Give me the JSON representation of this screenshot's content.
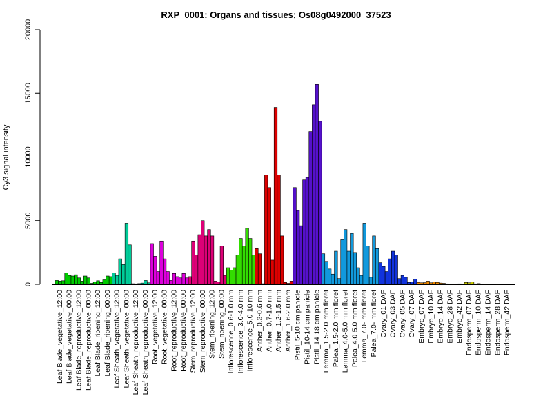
{
  "chart_data": {
    "type": "bar",
    "title": "RXP_0001: Organs and tissues; Os08g0492000_37523",
    "xlabel": "",
    "ylabel": "Cy3 signal intensity",
    "ylim": [
      0,
      20000
    ],
    "yticks": [
      0,
      5000,
      10000,
      15000,
      20000
    ],
    "legend": "none",
    "grid": false,
    "groups": [
      {
        "label": "Leaf Blade_vegetative_12:00",
        "color": "#00cc00",
        "values": [
          300,
          250,
          280
        ]
      },
      {
        "label": "Leaf Blade_vegetative_00:00",
        "color": "#00cc00",
        "values": [
          900,
          700,
          650
        ]
      },
      {
        "label": "Leaf Blade_reproductive_12:00",
        "color": "#00cc00",
        "values": [
          750,
          500,
          250
        ]
      },
      {
        "label": "Leaf Blade_reproductive_00:00",
        "color": "#00cc00",
        "values": [
          650,
          500,
          80
        ]
      },
      {
        "label": "Leaf Blade_ripening_12:00",
        "color": "#00cc00",
        "values": [
          200,
          280,
          150
        ]
      },
      {
        "label": "Leaf Blade_ripening_00:00",
        "color": "#00cc00",
        "values": [
          350,
          650,
          600
        ]
      },
      {
        "label": "Leaf Sheath_vegetative_12:00",
        "color": "#00cc99",
        "values": [
          900,
          700,
          2000
        ]
      },
      {
        "label": "Leaf Sheath_vegetative_00:00",
        "color": "#00cc99",
        "values": [
          1550,
          4800,
          3100
        ]
      },
      {
        "label": "Leaf Sheath_reproductive_12:00",
        "color": "#00cc99",
        "values": [
          50,
          40,
          60
        ]
      },
      {
        "label": "Leaf Sheath_reproductive_00:00",
        "color": "#00cc99",
        "values": [
          100,
          300,
          120
        ]
      },
      {
        "label": "Root_vegetative_12:00",
        "color": "#dd00dd",
        "values": [
          3200,
          2200,
          1000
        ]
      },
      {
        "label": "Root_vegetative_00:00",
        "color": "#dd00dd",
        "values": [
          3400,
          2000,
          1000
        ]
      },
      {
        "label": "Root_reproductive_12:00",
        "color": "#dd00dd",
        "values": [
          300,
          850,
          600
        ]
      },
      {
        "label": "Root_reproductive_00:00",
        "color": "#dd00dd",
        "values": [
          500,
          850,
          500
        ]
      },
      {
        "label": "Stem_reproductive_12:00",
        "color": "#dd0077",
        "values": [
          600,
          3400,
          2300
        ]
      },
      {
        "label": "Stem_reproductive_00:00",
        "color": "#dd0077",
        "values": [
          3900,
          5000,
          3800
        ]
      },
      {
        "label": "Stem_ripening_12:00",
        "color": "#dd0077",
        "values": [
          4300,
          3800,
          250
        ]
      },
      {
        "label": "Stem_ripening_00:00",
        "color": "#dd0077",
        "values": [
          200,
          3000,
          700
        ]
      },
      {
        "label": "Inflorescence_0.6-1.0 mm",
        "color": "#33dd00",
        "values": [
          1300,
          1100,
          1300
        ]
      },
      {
        "label": "Inflorescence_3.0-4.0 mm",
        "color": "#33dd00",
        "values": [
          2300,
          3600,
          3000
        ]
      },
      {
        "label": "Inflorescence_5.0-10 mm",
        "color": "#33dd00",
        "values": [
          4400,
          3600,
          2300
        ]
      },
      {
        "label": "Anther_0.3-0.6 mm",
        "color": "#dd0000",
        "values": [
          2800,
          2400,
          50
        ]
      },
      {
        "label": "Anther_0.7-1.0 mm",
        "color": "#dd0000",
        "values": [
          8600,
          7600,
          1900
        ]
      },
      {
        "label": "Anther_1.2-1.5 mm",
        "color": "#dd0000",
        "values": [
          13900,
          8600,
          3800
        ]
      },
      {
        "label": "Anther_1.6-2.0 mm",
        "color": "#dd0000",
        "values": [
          150,
          80,
          250
        ]
      },
      {
        "label": "Pistil_5-10 cm panicle",
        "color": "#5511cc",
        "values": [
          7600,
          5800,
          4600
        ]
      },
      {
        "label": "Pistil_10-14 cm panicle",
        "color": "#5511cc",
        "values": [
          8200,
          8400,
          12000
        ]
      },
      {
        "label": "Pistil_14-18 cm panicle",
        "color": "#5511cc",
        "values": [
          14100,
          15700,
          12800
        ]
      },
      {
        "label": "Lemma_1.5-2.0 mm floret",
        "color": "#1199dd",
        "values": [
          2400,
          1800,
          1200
        ]
      },
      {
        "label": "Palea_1.5-2.0 mm floret",
        "color": "#1199dd",
        "values": [
          800,
          2600,
          450
        ]
      },
      {
        "label": "Lemma_4.0-5.0 mm floret",
        "color": "#1199dd",
        "values": [
          3500,
          4300,
          2600
        ]
      },
      {
        "label": "Palea_4.0-5.0 mm floret",
        "color": "#1199dd",
        "values": [
          4000,
          2500,
          1300
        ]
      },
      {
        "label": "Lemma_7.0- mm floret",
        "color": "#1199dd",
        "values": [
          700,
          4800,
          3000
        ]
      },
      {
        "label": "Palea_7.0- mm floret",
        "color": "#1199dd",
        "values": [
          550,
          3800,
          2800
        ]
      },
      {
        "label": "Ovary_01 DAF",
        "color": "#1133dd",
        "values": [
          1700,
          1400,
          1000
        ]
      },
      {
        "label": "Ovary_03 DAF",
        "color": "#1133dd",
        "values": [
          2000,
          2600,
          2300
        ]
      },
      {
        "label": "Ovary_05 DAF",
        "color": "#1133dd",
        "values": [
          450,
          700,
          550
        ]
      },
      {
        "label": "Ovary_07 DAF",
        "color": "#1133dd",
        "values": [
          150,
          200,
          400
        ]
      },
      {
        "label": "Embryo_07 DAF",
        "color": "#ee8800",
        "values": [
          150,
          120,
          130
        ]
      },
      {
        "label": "Embryo_10 DAF",
        "color": "#ee8800",
        "values": [
          250,
          120,
          200
        ]
      },
      {
        "label": "Embryo_14 DAF",
        "color": "#ee8800",
        "values": [
          150,
          100,
          80
        ]
      },
      {
        "label": "Embryo_28 DAF",
        "color": "#ee8800",
        "values": [
          40,
          30,
          20
        ]
      },
      {
        "label": "Embryo_42 DAF",
        "color": "#ee8800",
        "values": [
          30,
          40,
          20
        ]
      },
      {
        "label": "Endosperm_07 DAF",
        "color": "#cccc00",
        "values": [
          150,
          120,
          200
        ]
      },
      {
        "label": "Endosperm_10 DAF",
        "color": "#cccc00",
        "values": [
          40,
          60,
          30
        ]
      },
      {
        "label": "Endosperm_14 DAF",
        "color": "#cccc00",
        "values": [
          20,
          25,
          15
        ]
      },
      {
        "label": "Endosperm_28 DAF",
        "color": "#cccc00",
        "values": [
          15,
          20,
          10
        ]
      },
      {
        "label": "Endosperm_42 DAF",
        "color": "#cccc00",
        "values": [
          10,
          15,
          10
        ]
      }
    ]
  }
}
